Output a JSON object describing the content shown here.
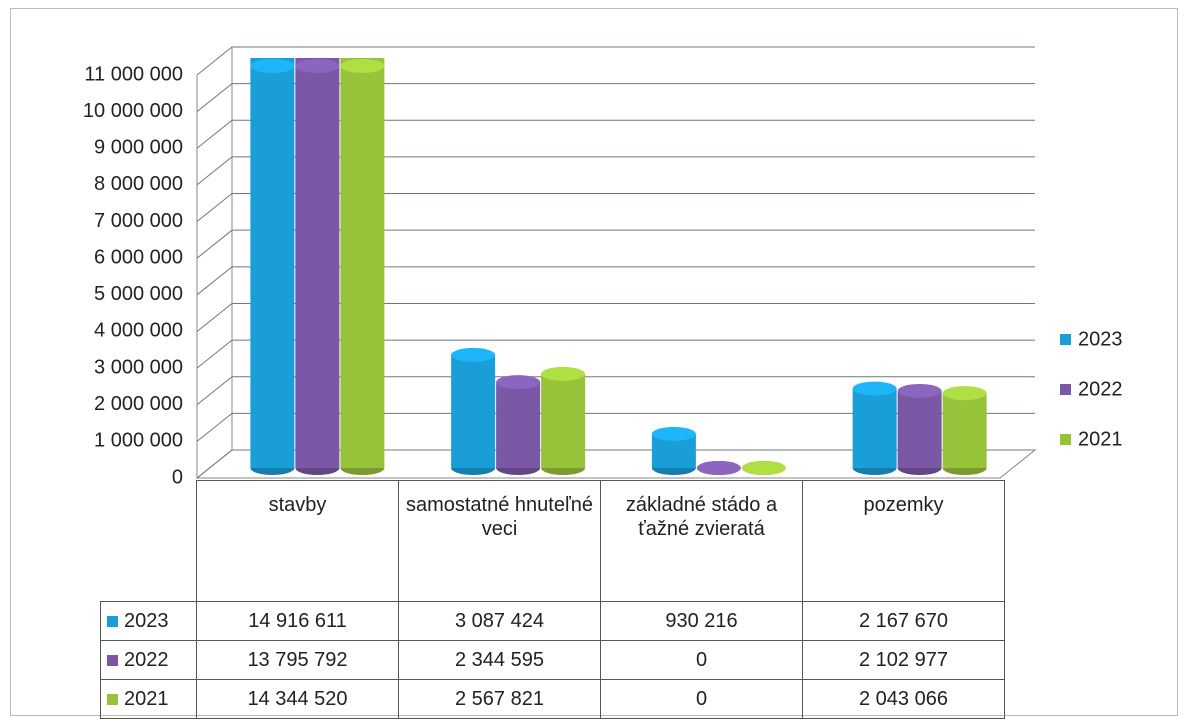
{
  "chart_data": {
    "type": "bar3d",
    "categories": [
      "stavby",
      "samostatné hnuteľné veci",
      "základné stádo a ťažné zvieratá",
      "pozemky"
    ],
    "series": [
      {
        "name": "2023",
        "color": "#1a9ed8",
        "values": [
          14916611,
          3087424,
          930216,
          2167670
        ],
        "value_labels": [
          "14 916 611",
          "3 087 424",
          "930 216",
          "2 167 670"
        ]
      },
      {
        "name": "2022",
        "color": "#7a58a6",
        "values": [
          13795792,
          2344595,
          0,
          2102977
        ],
        "value_labels": [
          "13 795 792",
          "2 344 595",
          "0",
          "2 102 977"
        ]
      },
      {
        "name": "2021",
        "color": "#98c23a",
        "values": [
          14344520,
          2567821,
          0,
          2043066
        ],
        "value_labels": [
          "14 344 520",
          "2 567 821",
          "0",
          "2 043 066"
        ]
      }
    ],
    "ylim": [
      0,
      11000000
    ],
    "yticks": [
      0,
      {
        "value": 1000000,
        "label": "1 000 000"
      },
      {
        "value": 2000000,
        "label": "2 000 000"
      },
      {
        "value": 3000000,
        "label": "3 000 000"
      },
      {
        "value": 4000000,
        "label": "4 000 000"
      },
      {
        "value": 5000000,
        "label": "5 000 000"
      },
      {
        "value": 6000000,
        "label": "6 000 000"
      },
      {
        "value": 7000000,
        "label": "7 000 000"
      },
      {
        "value": 8000000,
        "label": "8 000 000"
      },
      {
        "value": 9000000,
        "label": "9 000 000"
      },
      {
        "value": 10000000,
        "label": "10 000 000"
      },
      {
        "value": 11000000,
        "label": "11 000 000"
      }
    ],
    "grid": true,
    "legend": "right"
  }
}
